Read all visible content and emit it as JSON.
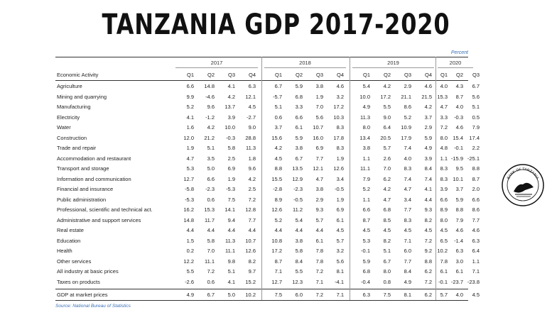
{
  "title": "TANZANIA GDP 2017-2020",
  "unit": "Percent",
  "source": "Source: National Bureau of Statistics",
  "row_header": "Economic Activity",
  "seal_text": "BANK OF TANZANIA",
  "years": [
    {
      "label": "2017",
      "quarters": [
        "Q1",
        "Q2",
        "Q3",
        "Q4"
      ]
    },
    {
      "label": "2018",
      "quarters": [
        "Q1",
        "Q2",
        "Q3",
        "Q4"
      ]
    },
    {
      "label": "2019",
      "quarters": [
        "Q1",
        "Q2",
        "Q3",
        "Q4"
      ]
    },
    {
      "label": "2020",
      "quarters": [
        "Q1",
        "Q2",
        "Q3"
      ]
    }
  ],
  "rows": [
    {
      "label": "Agriculture",
      "values": [
        "6.6",
        "14.8",
        "4.1",
        "6.3",
        "6.7",
        "5.9",
        "3.8",
        "4.6",
        "5.4",
        "4.2",
        "2.9",
        "4.6",
        "4.0",
        "4.3",
        "6.7"
      ]
    },
    {
      "label": "Mining and quarrying",
      "values": [
        "9.9",
        "-4.6",
        "4.2",
        "12.1",
        "-5.7",
        "6.8",
        "1.9",
        "3.2",
        "10.0",
        "17.2",
        "21.1",
        "21.5",
        "15.3",
        "8.7",
        "5.6"
      ]
    },
    {
      "label": "Manufacturing",
      "values": [
        "5.2",
        "9.6",
        "13.7",
        "4.5",
        "5.1",
        "3.3",
        "7.0",
        "17.2",
        "4.9",
        "5.5",
        "8.6",
        "4.2",
        "4.7",
        "4.0",
        "5.1"
      ]
    },
    {
      "label": "Electricity",
      "values": [
        "4.1",
        "-1.2",
        "3.9",
        "-2.7",
        "0.6",
        "6.6",
        "5.6",
        "10.3",
        "11.3",
        "9.0",
        "5.2",
        "3.7",
        "3.3",
        "-0.3",
        "0.5"
      ]
    },
    {
      "label": "Water",
      "values": [
        "1.6",
        "4.2",
        "10.0",
        "9.0",
        "3.7",
        "6.1",
        "10.7",
        "8.3",
        "8.0",
        "6.4",
        "10.9",
        "2.9",
        "7.2",
        "4.6",
        "7.9"
      ]
    },
    {
      "label": "Construction",
      "values": [
        "12.0",
        "21.2",
        "-0.3",
        "28.8",
        "15.6",
        "5.9",
        "16.0",
        "17.8",
        "13.4",
        "20.5",
        "17.9",
        "5.9",
        "8.0",
        "15.4",
        "17.4"
      ]
    },
    {
      "label": "Trade and repair",
      "values": [
        "1.9",
        "5.1",
        "5.8",
        "11.3",
        "4.2",
        "3.8",
        "6.9",
        "8.3",
        "3.8",
        "5.7",
        "7.4",
        "4.9",
        "4.8",
        "-0.1",
        "2.2"
      ]
    },
    {
      "label": "Accommodation and restaurant",
      "values": [
        "4.7",
        "3.5",
        "2.5",
        "1.8",
        "4.5",
        "6.7",
        "7.7",
        "1.9",
        "1.1",
        "2.6",
        "4.0",
        "3.9",
        "1.1",
        "-15.9",
        "-25.1"
      ]
    },
    {
      "label": "Transport and storage",
      "values": [
        "5.3",
        "5.0",
        "6.9",
        "9.6",
        "8.8",
        "13.5",
        "12.1",
        "12.6",
        "11.1",
        "7.0",
        "8.3",
        "8.4",
        "8.3",
        "9.5",
        "8.8"
      ]
    },
    {
      "label": "Information and communication",
      "values": [
        "12.7",
        "6.6",
        "1.9",
        "4.2",
        "15.5",
        "12.9",
        "4.7",
        "3.4",
        "7.9",
        "6.2",
        "7.4",
        "7.4",
        "8.3",
        "10.1",
        "8.7"
      ]
    },
    {
      "label": "Financial and insurance",
      "values": [
        "-5.8",
        "-2.3",
        "-5.3",
        "2.5",
        "-2.8",
        "-2.3",
        "3.8",
        "-0.5",
        "5.2",
        "4.2",
        "4.7",
        "4.1",
        "3.9",
        "3.7",
        "2.0"
      ]
    },
    {
      "label": "Public administration",
      "values": [
        "-5.3",
        "0.6",
        "7.5",
        "7.2",
        "8.9",
        "-0.5",
        "2.9",
        "1.9",
        "1.1",
        "4.7",
        "3.4",
        "4.4",
        "6.6",
        "5.9",
        "6.6"
      ]
    },
    {
      "label": "Professional, scientific and  technical act.",
      "values": [
        "16.2",
        "15.3",
        "14.1",
        "12.8",
        "12.6",
        "11.2",
        "9.3",
        "6.9",
        "6.6",
        "6.8",
        "7.7",
        "9.3",
        "8.9",
        "8.8",
        "8.6"
      ]
    },
    {
      "label": "Administrative and  support services",
      "values": [
        "14.8",
        "11.7",
        "9.4",
        "7.7",
        "5.2",
        "5.4",
        "5.7",
        "6.1",
        "8.7",
        "8.5",
        "8.3",
        "8.2",
        "8.0",
        "7.9",
        "7.7"
      ]
    },
    {
      "label": "Real estate",
      "values": [
        "4.4",
        "4.4",
        "4.4",
        "4.4",
        "4.4",
        "4.4",
        "4.4",
        "4.5",
        "4.5",
        "4.5",
        "4.5",
        "4.5",
        "4.5",
        "4.6",
        "4.6"
      ]
    },
    {
      "label": "Education",
      "values": [
        "1.5",
        "5.8",
        "11.3",
        "10.7",
        "10.8",
        "3.8",
        "6.1",
        "5.7",
        "5.3",
        "8.2",
        "7.1",
        "7.2",
        "6.5",
        "-1.4",
        "6.3"
      ]
    },
    {
      "label": "Health",
      "values": [
        "0.2",
        "7.0",
        "11.1",
        "12.6",
        "17.2",
        "5.8",
        "7.8",
        "3.2",
        "-0.1",
        "5.1",
        "6.0",
        "9.2",
        "10.2",
        "6.3",
        "6.4"
      ]
    },
    {
      "label": "Other services",
      "values": [
        "12.2",
        "11.1",
        "9.8",
        "8.2",
        "8.7",
        "8.4",
        "7.8",
        "5.6",
        "5.9",
        "6.7",
        "7.7",
        "8.8",
        "7.8",
        "3.0",
        "1.1"
      ]
    },
    {
      "label": "All industry at basic prices",
      "values": [
        "5.5",
        "7.2",
        "5.1",
        "9.7",
        "7.1",
        "5.5",
        "7.2",
        "8.1",
        "6.8",
        "8.0",
        "8.4",
        "6.2",
        "6.1",
        "6.1",
        "7.1"
      ]
    },
    {
      "label": "Taxes on products",
      "values": [
        "-2.6",
        "0.6",
        "4.1",
        "15.2",
        "12.7",
        "12.3",
        "7.1",
        "-4.1",
        "-0.4",
        "0.8",
        "4.9",
        "7.2",
        "-0.1",
        "-23.7",
        "-23.8"
      ]
    }
  ],
  "total_row": {
    "label": "GDP at market prices",
    "values": [
      "4.9",
      "6.7",
      "5.0",
      "10.2",
      "7.5",
      "6.0",
      "7.2",
      "7.1",
      "6.3",
      "7.5",
      "8.1",
      "6.2",
      "5.7",
      "4.0",
      "4.5"
    ]
  }
}
